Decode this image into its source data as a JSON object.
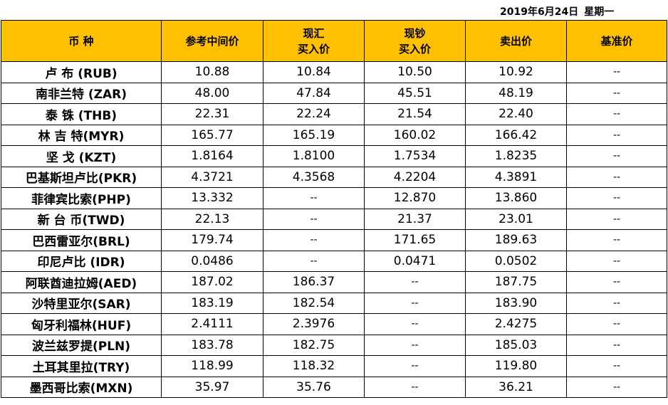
{
  "header": {
    "date": "2019年6月24日",
    "weekday": "星期一"
  },
  "colors": {
    "header_bg": "#FFC000",
    "border": "#000000"
  },
  "columns": [
    {
      "line1": "币 种",
      "line2": ""
    },
    {
      "line1": "参考中间价",
      "line2": ""
    },
    {
      "line1": "现汇",
      "line2": "买入价"
    },
    {
      "line1": "现钞",
      "line2": "买入价"
    },
    {
      "line1": "卖出价",
      "line2": ""
    },
    {
      "line1": "基准价",
      "line2": ""
    }
  ],
  "rows": [
    [
      "卢  布 (RUB)",
      "10.88",
      "10.84",
      "10.50",
      "10.92",
      "--"
    ],
    [
      "南非兰特 (ZAR)",
      "48.00",
      "47.84",
      "45.51",
      "48.19",
      "--"
    ],
    [
      "泰  铢 (THB)",
      "22.31",
      "22.24",
      "21.54",
      "22.40",
      "--"
    ],
    [
      "林 吉 特(MYR)",
      "165.77",
      "165.19",
      "160.02",
      "166.42",
      "--"
    ],
    [
      "坚  戈 (KZT)",
      "1.8164",
      "1.8100",
      "1.7534",
      "1.8235",
      "--"
    ],
    [
      "巴基斯坦卢比(PKR)",
      "4.3721",
      "4.3568",
      "4.2204",
      "4.3891",
      "--"
    ],
    [
      "菲律宾比索(PHP)",
      "13.332",
      "--",
      "12.870",
      "13.860",
      "--"
    ],
    [
      "新 台 币(TWD)",
      "22.13",
      "--",
      "21.37",
      "23.01",
      "--"
    ],
    [
      "巴西雷亚尔(BRL)",
      "179.74",
      "--",
      "171.65",
      "189.63",
      "--"
    ],
    [
      "印尼卢比  (IDR)",
      "0.0486",
      "--",
      "0.0471",
      "0.0502",
      "--"
    ],
    [
      "阿联酋迪拉姆(AED)",
      "187.02",
      "186.37",
      "--",
      "187.75",
      "--"
    ],
    [
      "沙特里亚尔(SAR)",
      "183.19",
      "182.54",
      "--",
      "183.90",
      "--"
    ],
    [
      "匈牙利福林(HUF)",
      "2.4111",
      "2.3976",
      "--",
      "2.4275",
      "--"
    ],
    [
      "波兰兹罗提(PLN)",
      "183.78",
      "182.75",
      "--",
      "185.03",
      "--"
    ],
    [
      "土耳其里拉(TRY)",
      "118.99",
      "118.32",
      "--",
      "119.80",
      "--"
    ],
    [
      "墨西哥比索(MXN)",
      "35.97",
      "35.76",
      "--",
      "36.21",
      "--"
    ]
  ]
}
